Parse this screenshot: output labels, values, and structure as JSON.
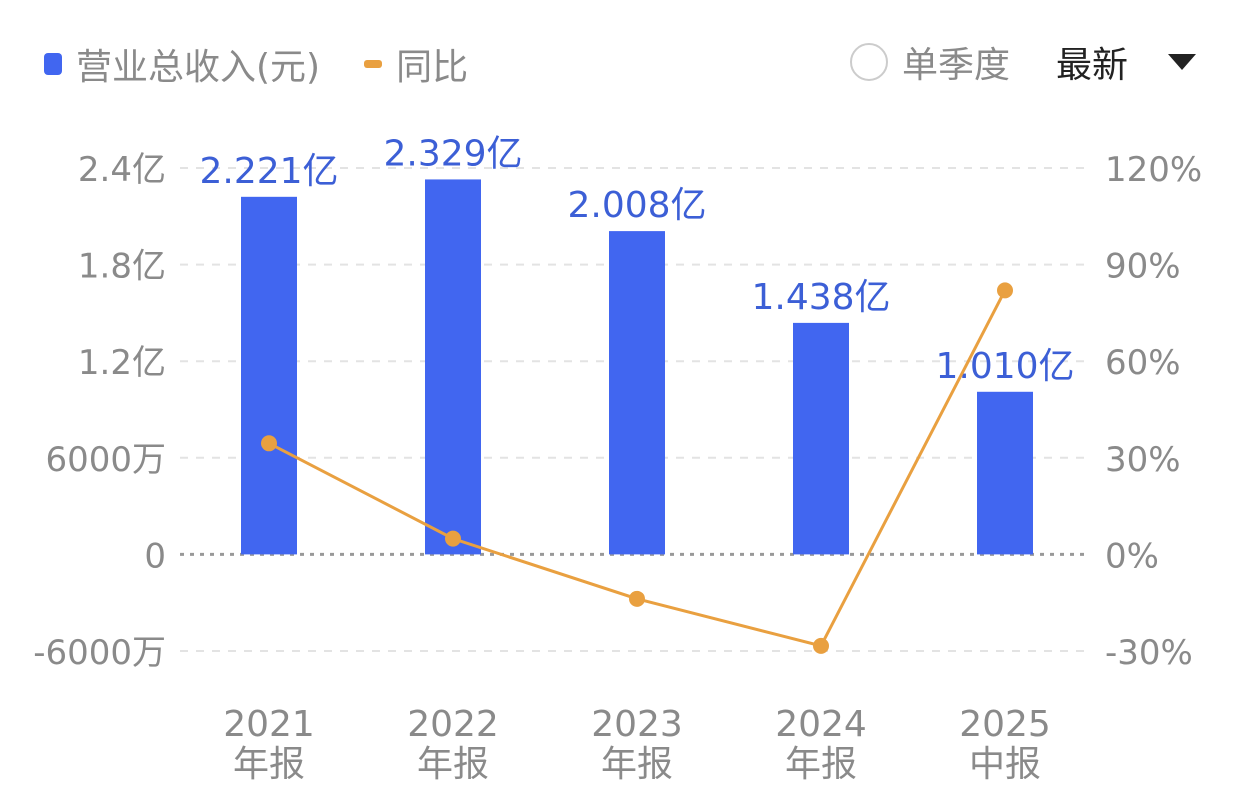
{
  "legend": {
    "bar_label": "营业总收入(元)",
    "line_label": "同比"
  },
  "controls": {
    "single_quarter": "单季度",
    "latest": "最新"
  },
  "colors": {
    "bar": "#4166f0",
    "line": "#e9a040",
    "axis_text": "#8a8a8a",
    "data_label": "#3c5fd6"
  },
  "chart_data": {
    "type": "bar+line",
    "categories": [
      [
        "2021",
        "年报"
      ],
      [
        "2022",
        "年报"
      ],
      [
        "2023",
        "年报"
      ],
      [
        "2024",
        "年报"
      ],
      [
        "2025",
        "中报"
      ]
    ],
    "series": [
      {
        "name": "营业总收入(元)",
        "type": "bar",
        "axis": "left",
        "values": [
          2.221,
          2.329,
          2.008,
          1.438,
          1.01
        ],
        "labels": [
          "2.221亿",
          "2.329亿",
          "2.008亿",
          "1.438亿",
          "1.010亿"
        ]
      },
      {
        "name": "同比",
        "type": "line",
        "axis": "right",
        "values": [
          34.5,
          4.9,
          -13.8,
          -28.4,
          82.0
        ]
      }
    ],
    "left_axis": {
      "unit": "亿",
      "ylim": [
        -0.6,
        2.4
      ],
      "ticks": [
        2.4,
        1.8,
        1.2,
        0.6,
        0,
        -0.6
      ],
      "tick_labels": [
        "2.4亿",
        "1.8亿",
        "1.2亿",
        "6000万",
        "0",
        "-6000万"
      ]
    },
    "right_axis": {
      "unit": "%",
      "ylim": [
        -30,
        120
      ],
      "ticks": [
        120,
        90,
        60,
        30,
        0,
        -30
      ],
      "tick_labels": [
        "120%",
        "90%",
        "60%",
        "30%",
        "0%",
        "-30%"
      ]
    },
    "grid": true
  }
}
